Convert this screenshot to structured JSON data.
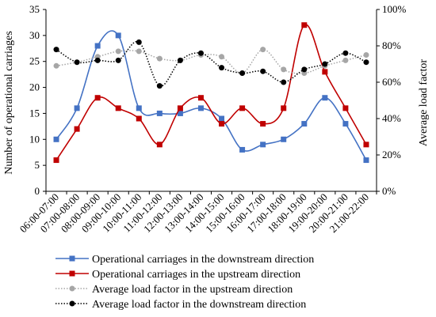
{
  "chart_data": {
    "type": "line",
    "categories": [
      "06:00-07:00",
      "07:00-08:00",
      "08:00-09:00",
      "09:00-10:00",
      "10:00-11:00",
      "11:00-12:00",
      "12:00-13:00",
      "13:00-14:00",
      "14:00-15:00",
      "15:00-16:00",
      "16:00-17:00",
      "17:00-18:00",
      "18:00-19:00",
      "19:00-20:00",
      "20:00-21:00",
      "21:00-22:00"
    ],
    "y_left": {
      "label": "Number of  operational carriages",
      "min": 0,
      "max": 35,
      "ticks": [
        "0",
        "5",
        "10",
        "15",
        "20",
        "25",
        "30",
        "35"
      ]
    },
    "y_right": {
      "label": "Average load  factor",
      "min": 0,
      "max": 100,
      "ticks": [
        "0%",
        "20%",
        "40%",
        "60%",
        "80%",
        "100%"
      ]
    },
    "series": [
      {
        "name": "Operational carriages in the downstream direction",
        "axis": "left",
        "color": "#4472c4",
        "marker": "square",
        "line": "solid",
        "values": [
          10,
          16,
          28,
          30,
          16,
          15,
          15,
          16,
          14,
          8,
          9,
          10,
          13,
          18,
          13,
          6
        ]
      },
      {
        "name": "Operational carriages in the upstream direction",
        "axis": "left",
        "color": "#c00000",
        "marker": "square",
        "line": "solid",
        "values": [
          6,
          12,
          18,
          16,
          14,
          9,
          16,
          18,
          13,
          16,
          13,
          16,
          32,
          23,
          16,
          9
        ]
      },
      {
        "name": "Average load factor in the upstream direction",
        "axis": "right",
        "color": "#a6a6a6",
        "marker": "circle",
        "line": "dotted",
        "values": [
          69,
          71,
          74,
          77,
          77,
          73,
          72,
          75,
          74,
          65,
          78,
          67,
          65,
          69,
          72,
          75
        ]
      },
      {
        "name": "Average load factor in the downstream direction",
        "axis": "right",
        "color": "#000000",
        "marker": "circle",
        "line": "dotted",
        "values": [
          78,
          71,
          72,
          72,
          82,
          58,
          72,
          76,
          68,
          65,
          66,
          60,
          67,
          70,
          76,
          71
        ]
      }
    ],
    "grid": false,
    "legend_position": "bottom"
  }
}
